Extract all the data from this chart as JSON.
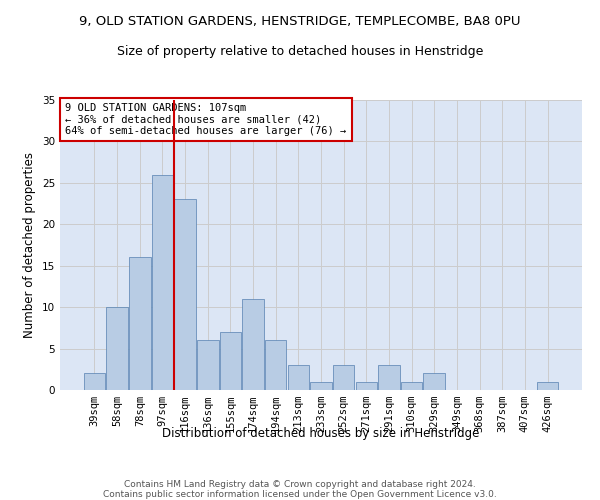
{
  "title": "9, OLD STATION GARDENS, HENSTRIDGE, TEMPLECOMBE, BA8 0PU",
  "subtitle": "Size of property relative to detached houses in Henstridge",
  "xlabel": "Distribution of detached houses by size in Henstridge",
  "ylabel": "Number of detached properties",
  "categories": [
    "39sqm",
    "58sqm",
    "78sqm",
    "97sqm",
    "116sqm",
    "136sqm",
    "155sqm",
    "174sqm",
    "194sqm",
    "213sqm",
    "233sqm",
    "252sqm",
    "271sqm",
    "291sqm",
    "310sqm",
    "329sqm",
    "349sqm",
    "368sqm",
    "387sqm",
    "407sqm",
    "426sqm"
  ],
  "values": [
    2,
    10,
    16,
    26,
    23,
    6,
    7,
    11,
    6,
    3,
    1,
    3,
    1,
    3,
    1,
    2,
    0,
    0,
    0,
    0,
    1
  ],
  "bar_color": "#b8cce4",
  "bar_edge_color": "#5580b0",
  "grid_color": "#cccccc",
  "background_color": "#dce6f5",
  "vline_x_index": 3.5,
  "vline_color": "#cc0000",
  "annotation_text": "9 OLD STATION GARDENS: 107sqm\n← 36% of detached houses are smaller (42)\n64% of semi-detached houses are larger (76) →",
  "annotation_box_color": "#ffffff",
  "annotation_edge_color": "#cc0000",
  "ylim": [
    0,
    35
  ],
  "yticks": [
    0,
    5,
    10,
    15,
    20,
    25,
    30,
    35
  ],
  "footer": "Contains HM Land Registry data © Crown copyright and database right 2024.\nContains public sector information licensed under the Open Government Licence v3.0.",
  "title_fontsize": 9.5,
  "subtitle_fontsize": 9,
  "xlabel_fontsize": 8.5,
  "ylabel_fontsize": 8.5,
  "tick_fontsize": 7.5,
  "footer_fontsize": 6.5,
  "annot_fontsize": 7.5
}
